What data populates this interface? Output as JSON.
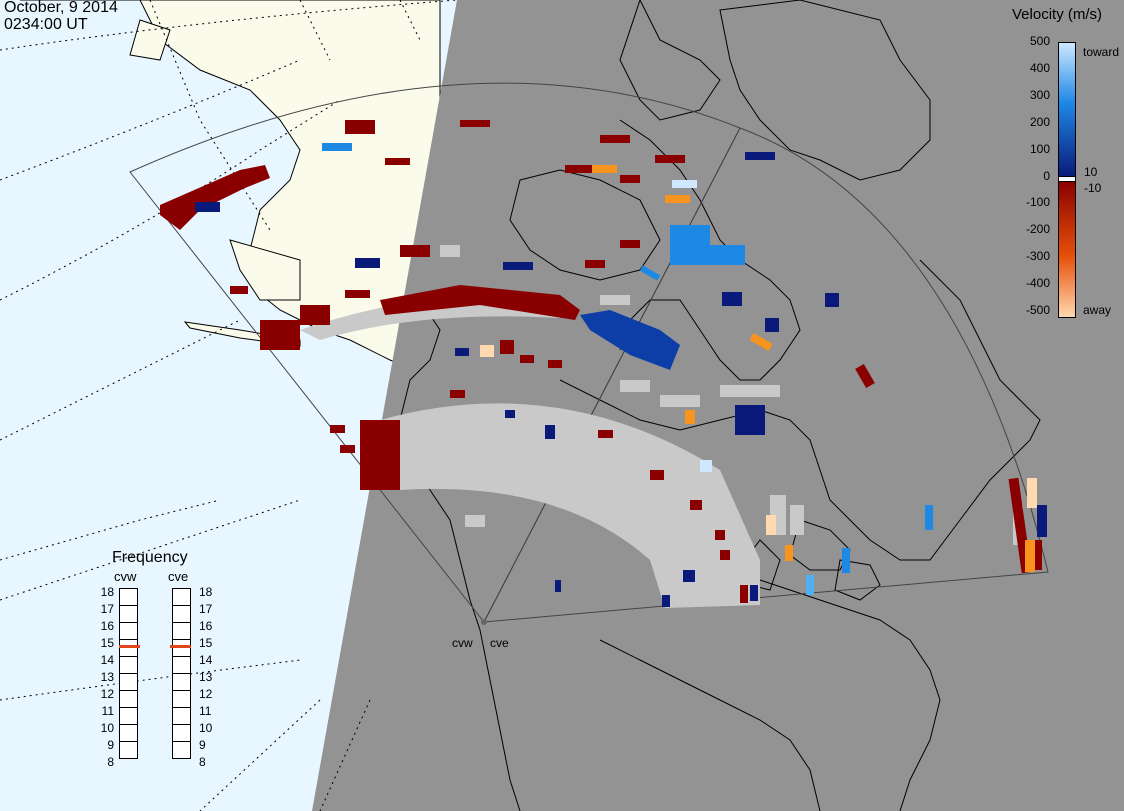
{
  "header": {
    "date": "October, 9 2014",
    "time": "0234:00 UT"
  },
  "velocity_legend": {
    "title": "Velocity (m/s)",
    "ticks_upper": [
      "500",
      "400",
      "300",
      "200",
      "100"
    ],
    "tick_zero": "0",
    "ticks_lower": [
      "-100",
      "-200",
      "-300",
      "-400",
      "-500"
    ],
    "small_pos": "10",
    "small_neg": "-10",
    "label_toward": "toward",
    "label_away": "away",
    "colors": {
      "toward_light": "#cfe8ff",
      "toward_mid": "#1e88e5",
      "toward_dark": "#0a1a7a",
      "near_zero": "#ffffff",
      "away_dark": "#8a0000",
      "away_mid": "#e6500a",
      "away_light": "#ffd9b0"
    }
  },
  "frequency_panel": {
    "title": "Frequency",
    "radars": [
      "cvw",
      "cve"
    ],
    "ticks": [
      "18",
      "17",
      "16",
      "15",
      "14",
      "13",
      "12",
      "11",
      "10",
      "9",
      "8"
    ],
    "current_mhz": {
      "cvw": 15,
      "cve": 15
    },
    "marker_color": "#e0461a"
  },
  "stations": [
    "cvw",
    "cve"
  ],
  "map_colors": {
    "night": "#939393",
    "day_ocean": "#e8f6ff",
    "day_land": "#fbfbec",
    "ground_scatter": "#c9c9c9",
    "coast": "#000000"
  }
}
